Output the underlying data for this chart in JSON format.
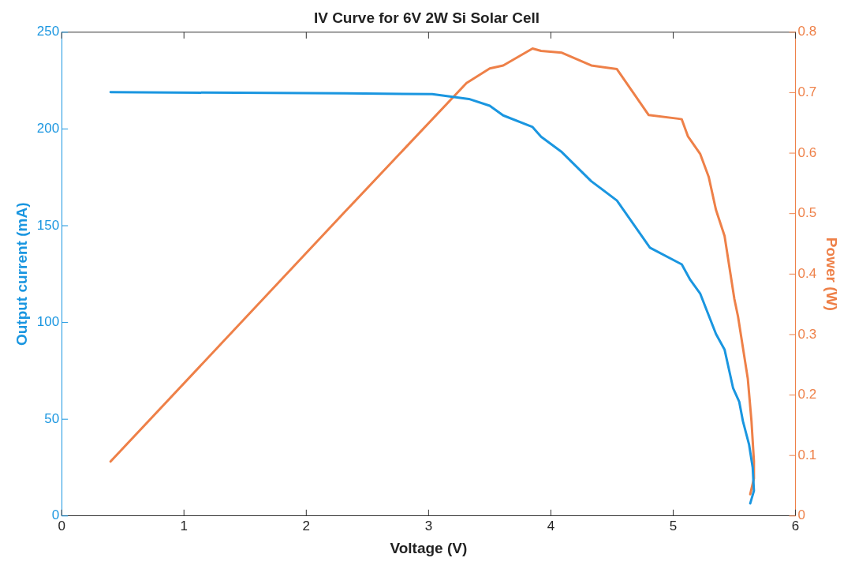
{
  "chart_data": {
    "type": "line",
    "title": "IV Curve for 6V 2W Si Solar Cell",
    "xlabel": "Voltage (V)",
    "ylabel": "Output current (mA)",
    "y2label": "Power (W)",
    "xlim": [
      0,
      6
    ],
    "xticks": [
      0,
      1,
      2,
      3,
      4,
      5,
      6
    ],
    "ylim": [
      0,
      250
    ],
    "yticks": [
      0,
      50,
      100,
      150,
      200,
      250
    ],
    "y2lim": [
      0,
      0.8
    ],
    "y2ticks": [
      0,
      0.1,
      0.2,
      0.3,
      0.4,
      0.5,
      0.6,
      0.7,
      0.8
    ],
    "grid": false,
    "legend": false,
    "marker": "none",
    "line_style": "solid",
    "series": [
      {
        "color": "#1a96e0",
        "x": [
          0.4,
          2.32,
          3.03,
          3.33,
          3.5,
          3.61,
          3.85,
          3.92,
          4.09,
          4.33,
          4.54,
          4.81,
          5.07,
          5.14,
          5.22,
          5.35,
          5.42,
          5.49,
          5.54,
          5.57,
          5.62,
          5.65,
          5.66,
          5.63
        ],
        "values": [
          219,
          218.4,
          218,
          215.5,
          212,
          207,
          201,
          196,
          188,
          173,
          163,
          138.6,
          130,
          122,
          115,
          94,
          86,
          66,
          59,
          49,
          37,
          25,
          13,
          6.5
        ]
      },
      {
        "color": "#ee8048",
        "axis": "y2",
        "x": [
          0.4,
          2.33,
          3.31,
          3.5,
          3.61,
          3.85,
          3.92,
          4.09,
          4.33,
          4.54,
          4.8,
          5.04,
          5.07,
          5.12,
          5.22,
          5.29,
          5.35,
          5.42,
          5.5,
          5.53,
          5.61,
          5.64,
          5.66,
          5.66,
          5.63
        ],
        "values": [
          0.09,
          0.506,
          0.716,
          0.74,
          0.745,
          0.773,
          0.769,
          0.766,
          0.745,
          0.739,
          0.663,
          0.657,
          0.656,
          0.628,
          0.599,
          0.561,
          0.506,
          0.463,
          0.359,
          0.33,
          0.227,
          0.157,
          0.091,
          0.062,
          0.036
        ]
      }
    ]
  }
}
